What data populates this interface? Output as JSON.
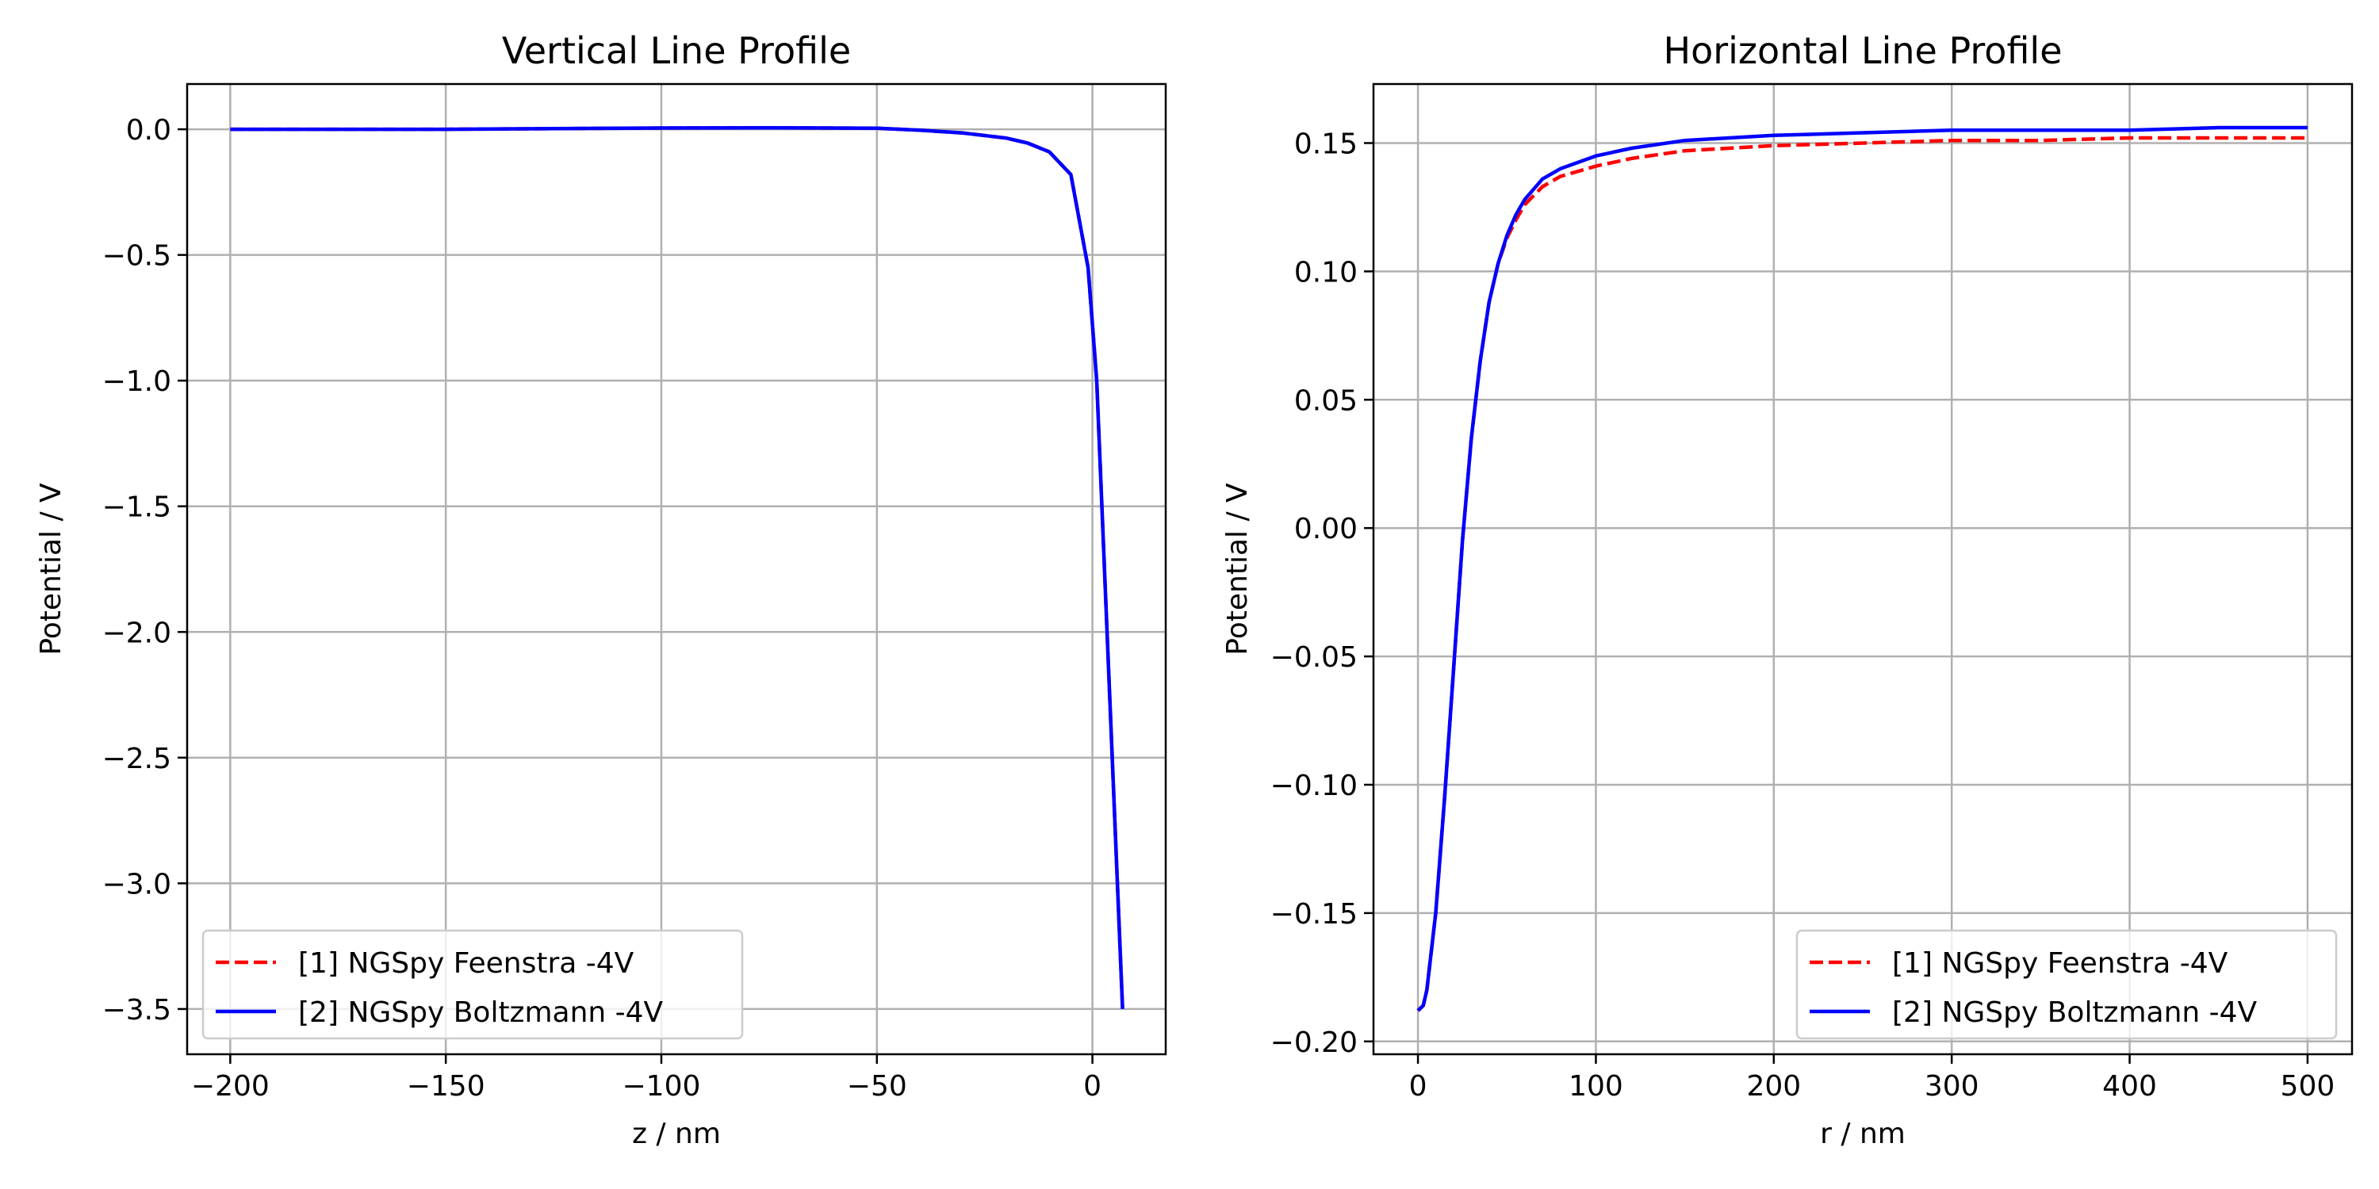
{
  "chart_data": [
    {
      "type": "line",
      "title": "Vertical Line Profile",
      "xlabel": "z / nm",
      "ylabel": "Potential / V",
      "xlim": [
        -210,
        17
      ],
      "ylim": [
        -3.68,
        0.18
      ],
      "xticks": [
        -200,
        -150,
        -100,
        -50,
        0
      ],
      "xtick_labels": [
        "−200",
        "−150",
        "−100",
        "−50",
        "0"
      ],
      "yticks": [
        0.0,
        -0.5,
        -1.0,
        -1.5,
        -2.0,
        -2.5,
        -3.0,
        -3.5
      ],
      "ytick_labels": [
        "0.0",
        "−0.5",
        "−1.0",
        "−1.5",
        "−2.0",
        "−2.5",
        "−3.0",
        "−3.5"
      ],
      "grid": true,
      "legend_position": "lower-left",
      "series": [
        {
          "name": "[1] NGSpy Feenstra -4V",
          "color": "#ff0000",
          "style": "dashed",
          "x": [
            -200,
            -150,
            -100,
            -75,
            -50,
            -40,
            -30,
            -20,
            -15,
            -10,
            -5,
            -1,
            1,
            7
          ],
          "y": [
            0.0,
            0.0,
            0.005,
            0.006,
            0.004,
            -0.004,
            -0.015,
            -0.035,
            -0.055,
            -0.09,
            -0.18,
            -0.55,
            -1.0,
            -3.5
          ]
        },
        {
          "name": "[2] NGSpy Boltzmann -4V",
          "color": "#0000ff",
          "style": "solid",
          "x": [
            -200,
            -150,
            -100,
            -75,
            -50,
            -40,
            -30,
            -20,
            -15,
            -10,
            -5,
            -1,
            1,
            7
          ],
          "y": [
            0.0,
            0.0,
            0.005,
            0.006,
            0.004,
            -0.004,
            -0.015,
            -0.035,
            -0.055,
            -0.09,
            -0.18,
            -0.55,
            -1.0,
            -3.5
          ]
        }
      ]
    },
    {
      "type": "line",
      "title": "Horizontal Line Profile",
      "xlabel": "r / nm",
      "ylabel": "Potential / V",
      "xlim": [
        -25,
        525
      ],
      "ylim": [
        -0.205,
        0.173
      ],
      "xticks": [
        0,
        100,
        200,
        300,
        400,
        500
      ],
      "xtick_labels": [
        "0",
        "100",
        "200",
        "300",
        "400",
        "500"
      ],
      "yticks": [
        0.15,
        0.1,
        0.05,
        0.0,
        -0.05,
        -0.1,
        -0.15,
        -0.2
      ],
      "ytick_labels": [
        "0.15",
        "0.10",
        "0.05",
        "0.00",
        "−0.05",
        "−0.10",
        "−0.15",
        "−0.20"
      ],
      "grid": true,
      "legend_position": "lower-right",
      "series": [
        {
          "name": "[1] NGSpy Feenstra -4V",
          "color": "#ff0000",
          "style": "dashed",
          "x": [
            0,
            3,
            5,
            10,
            15,
            20,
            25,
            30,
            35,
            40,
            45,
            50,
            55,
            60,
            70,
            80,
            100,
            120,
            150,
            200,
            250,
            300,
            350,
            400,
            450,
            500
          ],
          "y": [
            -0.188,
            -0.186,
            -0.18,
            -0.15,
            -0.105,
            -0.055,
            -0.005,
            0.035,
            0.065,
            0.088,
            0.103,
            0.113,
            0.12,
            0.126,
            0.133,
            0.137,
            0.141,
            0.144,
            0.147,
            0.149,
            0.15,
            0.151,
            0.151,
            0.152,
            0.152,
            0.152
          ]
        },
        {
          "name": "[2] NGSpy Boltzmann -4V",
          "color": "#0000ff",
          "style": "solid",
          "x": [
            0,
            3,
            5,
            10,
            15,
            20,
            25,
            30,
            35,
            40,
            45,
            50,
            55,
            60,
            70,
            80,
            100,
            120,
            150,
            200,
            250,
            300,
            350,
            400,
            450,
            500
          ],
          "y": [
            -0.188,
            -0.186,
            -0.18,
            -0.15,
            -0.105,
            -0.055,
            -0.005,
            0.035,
            0.065,
            0.088,
            0.103,
            0.114,
            0.122,
            0.128,
            0.136,
            0.14,
            0.145,
            0.148,
            0.151,
            0.153,
            0.154,
            0.155,
            0.155,
            0.155,
            0.156,
            0.156
          ]
        }
      ]
    }
  ]
}
